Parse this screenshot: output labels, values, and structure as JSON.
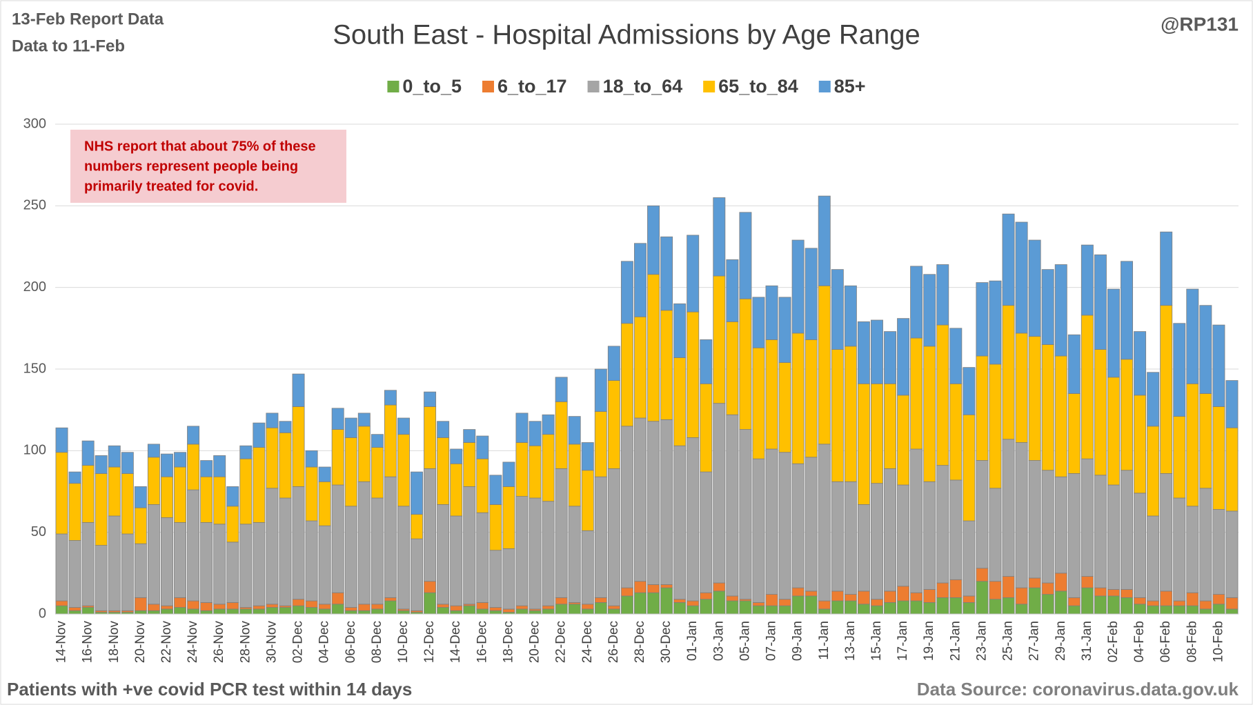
{
  "header": {
    "report": "13-Feb Report Data",
    "data_to": "Data to 11-Feb",
    "handle": "@RP131"
  },
  "footer": {
    "left": "Patients with  +ve covid PCR test within 14 days",
    "right": "Data Source: coronavirus.data.gov.uk"
  },
  "chart_data": {
    "type": "stacked_bar",
    "title": "South East - Hospital Admissions by Age Range",
    "annotation": [
      "NHS report that about 75% of these",
      "numbers represent people being",
      "primarily treated for covid."
    ],
    "categories": [
      "14-Nov",
      null,
      "16-Nov",
      null,
      "18-Nov",
      null,
      "20-Nov",
      null,
      "22-Nov",
      null,
      "24-Nov",
      null,
      "26-Nov",
      null,
      "28-Nov",
      null,
      "30-Nov",
      null,
      "02-Dec",
      null,
      "04-Dec",
      null,
      "06-Dec",
      null,
      "08-Dec",
      null,
      "10-Dec",
      null,
      "12-Dec",
      null,
      "14-Dec",
      null,
      "16-Dec",
      null,
      "18-Dec",
      null,
      "20-Dec",
      null,
      "22-Dec",
      null,
      "24-Dec",
      null,
      "26-Dec",
      null,
      "28-Dec",
      null,
      "30-Dec",
      null,
      "01-Jan",
      null,
      "03-Jan",
      null,
      "05-Jan",
      null,
      "07-Jan",
      null,
      "09-Jan",
      null,
      "11-Jan",
      null,
      "13-Jan",
      null,
      "15-Jan",
      null,
      "17-Jan",
      null,
      "19-Jan",
      null,
      "21-Jan",
      null,
      "23-Jan",
      null,
      "25-Jan",
      null,
      "27-Jan",
      null,
      "29-Jan",
      null,
      "31-Jan",
      null,
      "02-Feb",
      null,
      "04-Feb",
      null,
      "06-Feb",
      null,
      "08-Feb",
      null,
      "10-Feb",
      null
    ],
    "series": [
      {
        "name": "0_to_5",
        "color": "#70ad47",
        "values": [
          5,
          2,
          4,
          1,
          1,
          1,
          2,
          2,
          3,
          4,
          3,
          2,
          3,
          3,
          3,
          3,
          4,
          4,
          5,
          4,
          3,
          6,
          2,
          2,
          3,
          8,
          2,
          1,
          13,
          4,
          2,
          5,
          3,
          2,
          1,
          3,
          2,
          3,
          6,
          6,
          3,
          7,
          3,
          11,
          13,
          13,
          16,
          7,
          5,
          9,
          14,
          8,
          8,
          5,
          5,
          5,
          11,
          11,
          3,
          8,
          8,
          6,
          5,
          7,
          8,
          8,
          7,
          10,
          10,
          7,
          20,
          9,
          10,
          6,
          16,
          12,
          14,
          5,
          16,
          11,
          11,
          10,
          6,
          5,
          5,
          5,
          5,
          3,
          6,
          3
        ]
      },
      {
        "name": "6_to_17",
        "color": "#ed7d31",
        "values": [
          3,
          2,
          1,
          1,
          1,
          1,
          8,
          4,
          2,
          6,
          5,
          5,
          3,
          4,
          1,
          2,
          2,
          1,
          4,
          4,
          3,
          7,
          2,
          4,
          3,
          2,
          1,
          1,
          7,
          2,
          3,
          1,
          4,
          2,
          2,
          2,
          1,
          2,
          4,
          1,
          3,
          3,
          2,
          5,
          7,
          5,
          2,
          2,
          3,
          4,
          5,
          3,
          1,
          2,
          7,
          4,
          5,
          3,
          5,
          6,
          4,
          8,
          4,
          7,
          9,
          5,
          8,
          9,
          11,
          4,
          8,
          11,
          13,
          10,
          6,
          7,
          11,
          5,
          7,
          5,
          4,
          5,
          4,
          3,
          9,
          3,
          8,
          5,
          6,
          7
        ]
      },
      {
        "name": "18_to_64",
        "color": "#a5a5a5",
        "values": [
          41,
          41,
          51,
          40,
          58,
          47,
          33,
          61,
          54,
          46,
          68,
          49,
          49,
          37,
          51,
          51,
          71,
          66,
          69,
          49,
          48,
          66,
          62,
          75,
          65,
          74,
          63,
          44,
          69,
          61,
          55,
          72,
          55,
          35,
          37,
          67,
          68,
          64,
          79,
          59,
          45,
          74,
          84,
          99,
          100,
          100,
          101,
          94,
          100,
          74,
          110,
          111,
          104,
          88,
          89,
          90,
          76,
          82,
          96,
          67,
          69,
          53,
          71,
          75,
          62,
          88,
          66,
          72,
          61,
          46,
          66,
          57,
          84,
          89,
          72,
          69,
          59,
          76,
          72,
          69,
          64,
          73,
          64,
          52,
          72,
          63,
          53,
          69,
          52,
          53
        ]
      },
      {
        "name": "65_to_84",
        "color": "#ffc000",
        "values": [
          50,
          35,
          35,
          44,
          30,
          37,
          22,
          29,
          25,
          34,
          28,
          28,
          29,
          22,
          40,
          46,
          37,
          40,
          49,
          33,
          27,
          34,
          42,
          34,
          31,
          44,
          44,
          15,
          38,
          41,
          32,
          27,
          33,
          28,
          38,
          33,
          32,
          41,
          41,
          38,
          37,
          40,
          54,
          63,
          62,
          90,
          67,
          54,
          77,
          54,
          78,
          57,
          80,
          68,
          67,
          55,
          80,
          72,
          97,
          81,
          83,
          74,
          61,
          52,
          55,
          68,
          83,
          86,
          59,
          65,
          64,
          76,
          82,
          67,
          76,
          77,
          74,
          49,
          88,
          77,
          66,
          68,
          60,
          55,
          103,
          50,
          75,
          58,
          63,
          51
        ]
      },
      {
        "name": "85+",
        "color": "#5b9bd5",
        "values": [
          15,
          7,
          15,
          11,
          13,
          13,
          13,
          8,
          14,
          9,
          11,
          10,
          13,
          12,
          8,
          15,
          9,
          7,
          20,
          10,
          9,
          13,
          12,
          8,
          8,
          9,
          10,
          26,
          9,
          10,
          9,
          8,
          14,
          18,
          15,
          18,
          15,
          12,
          15,
          17,
          17,
          26,
          21,
          38,
          45,
          42,
          45,
          33,
          47,
          27,
          48,
          38,
          53,
          31,
          33,
          40,
          57,
          56,
          55,
          49,
          37,
          38,
          39,
          32,
          47,
          44,
          44,
          37,
          34,
          29,
          45,
          51,
          56,
          68,
          59,
          46,
          56,
          36,
          43,
          58,
          54,
          60,
          39,
          33,
          45,
          57,
          58,
          54,
          50,
          29
        ]
      }
    ],
    "ylim": [
      0,
      300
    ],
    "yticks": [
      0,
      50,
      100,
      150,
      200,
      250,
      300
    ],
    "grid": true,
    "legend": "top"
  }
}
